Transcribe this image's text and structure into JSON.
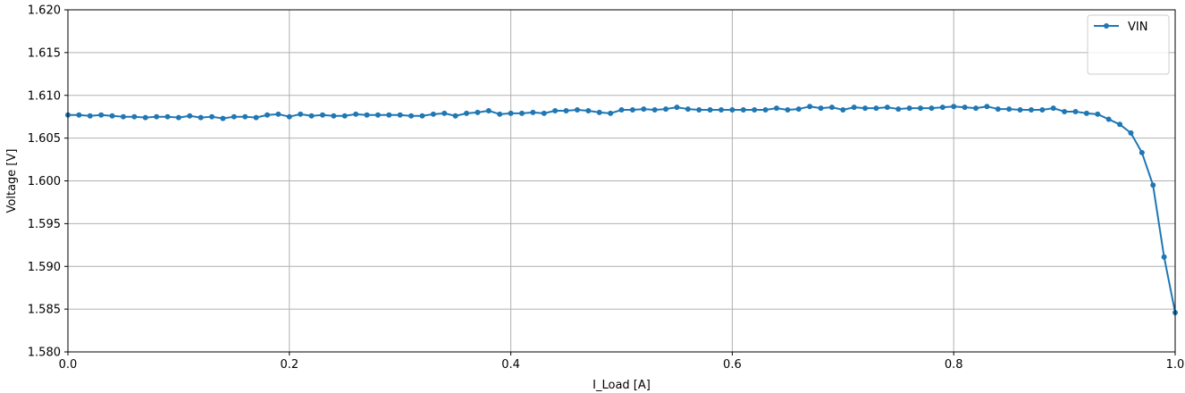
{
  "chart_data": {
    "type": "line",
    "title": "",
    "xlabel": "I_Load [A]",
    "ylabel": "Voltage [V]",
    "xlim": [
      0.0,
      1.0
    ],
    "ylim": [
      1.58,
      1.62
    ],
    "xticks": [
      "0.0",
      "0.2",
      "0.4",
      "0.6",
      "0.8",
      "1.0"
    ],
    "yticks": [
      "1.580",
      "1.585",
      "1.590",
      "1.595",
      "1.600",
      "1.605",
      "1.610",
      "1.615",
      "1.620"
    ],
    "grid": true,
    "legend_position": "top-right",
    "marker": "circle",
    "series": [
      {
        "name": "VIN",
        "color": "#1f77b4",
        "x": [
          0.0,
          0.01,
          0.02,
          0.03,
          0.04,
          0.05,
          0.06,
          0.07,
          0.08,
          0.09,
          0.1,
          0.11,
          0.12,
          0.13,
          0.14,
          0.15,
          0.16,
          0.17,
          0.18,
          0.19,
          0.2,
          0.21,
          0.22,
          0.23,
          0.24,
          0.25,
          0.26,
          0.27,
          0.28,
          0.29,
          0.3,
          0.31,
          0.32,
          0.33,
          0.34,
          0.35,
          0.36,
          0.37,
          0.38,
          0.39,
          0.4,
          0.41,
          0.42,
          0.43,
          0.44,
          0.45,
          0.46,
          0.47,
          0.48,
          0.49,
          0.5,
          0.51,
          0.52,
          0.53,
          0.54,
          0.55,
          0.56,
          0.57,
          0.58,
          0.59,
          0.6,
          0.61,
          0.62,
          0.63,
          0.64,
          0.65,
          0.66,
          0.67,
          0.68,
          0.69,
          0.7,
          0.71,
          0.72,
          0.73,
          0.74,
          0.75,
          0.76,
          0.77,
          0.78,
          0.79,
          0.8,
          0.81,
          0.82,
          0.83,
          0.84,
          0.85,
          0.86,
          0.87,
          0.88,
          0.89,
          0.9,
          0.91,
          0.92,
          0.93,
          0.94,
          0.95,
          0.96,
          0.97,
          0.98,
          0.99,
          1.0
        ],
        "y": [
          1.6077,
          1.6077,
          1.6076,
          1.6077,
          1.6076,
          1.6075,
          1.6075,
          1.6074,
          1.6075,
          1.6075,
          1.6074,
          1.6076,
          1.6074,
          1.6075,
          1.6073,
          1.6075,
          1.6075,
          1.6074,
          1.6077,
          1.6078,
          1.6075,
          1.6078,
          1.6076,
          1.6077,
          1.6076,
          1.6076,
          1.6078,
          1.6077,
          1.6077,
          1.6077,
          1.6077,
          1.6076,
          1.6076,
          1.6078,
          1.6079,
          1.6076,
          1.6079,
          1.608,
          1.6082,
          1.6078,
          1.6079,
          1.6079,
          1.608,
          1.6079,
          1.6082,
          1.6082,
          1.6083,
          1.6082,
          1.608,
          1.6079,
          1.6083,
          1.6083,
          1.6084,
          1.6083,
          1.6084,
          1.6086,
          1.6084,
          1.6083,
          1.6083,
          1.6083,
          1.6083,
          1.6083,
          1.6083,
          1.6083,
          1.6085,
          1.6083,
          1.6084,
          1.6087,
          1.6085,
          1.6086,
          1.6083,
          1.6086,
          1.6085,
          1.6085,
          1.6086,
          1.6084,
          1.6085,
          1.6085,
          1.6085,
          1.6086,
          1.6087,
          1.6086,
          1.6085,
          1.6087,
          1.6084,
          1.6084,
          1.6083,
          1.6083,
          1.6083,
          1.6085,
          1.6081,
          1.6081,
          1.6079,
          1.6078,
          1.6072,
          1.6066,
          1.6056,
          1.6033,
          1.5995,
          1.5911,
          1.5846
        ]
      }
    ]
  }
}
